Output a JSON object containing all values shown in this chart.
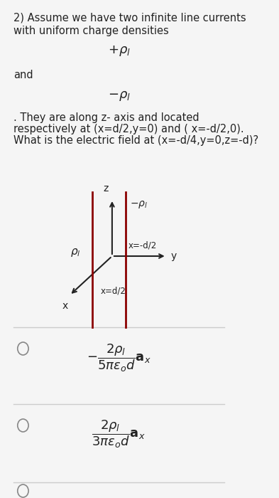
{
  "bg_color": "#f5f5f5",
  "text_color": "#222222",
  "line1": "2) Assume we have two infinite line currents",
  "line2": "with uniform charge densities",
  "plus_rho": "+ρₗ",
  "and_text": "and",
  "minus_rho": "−ρₗ",
  "body_text": ". They are along z- axis and located\nrespectively at (x=d/2,y=0) and ( x=-d/2,0).\nWhat is the electric field at (x=-d/4,y=0,z=-d)?",
  "option1_text": "$-\\dfrac{2\\rho_l}{5\\pi\\epsilon_o d}\\mathbf{a}_x$",
  "option2_text": "$\\dfrac{2\\rho_l}{3\\pi\\epsilon_o d}\\mathbf{a}_x$",
  "dark_red": "#8B0000",
  "axis_color": "#222222",
  "separator_color": "#cccccc"
}
